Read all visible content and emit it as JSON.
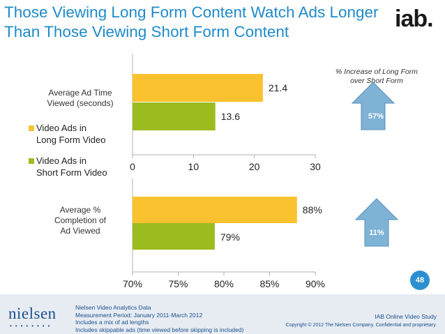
{
  "title": "Those Viewing Long Form Content Watch Ads Longer Than Those Viewing Short Form Content",
  "logo_text": "iab.",
  "page_number": "48",
  "increase_note": "% Increase of Long Form over Short Form",
  "footer": {
    "brand": "nielsen",
    "notes": [
      "Nielsen Video Analytics Data",
      "Measurement Period: January 2011-March 2012",
      "Includes a mix of ad lengths",
      "Includes skippable ads (time viewed before skipping is included)"
    ],
    "study": "IAB Online Video Study",
    "copyright": "Copyright © 2012 The Nielsen Company. Confidential and proprietary."
  },
  "colors": {
    "long_form": "#f9c22e",
    "short_form": "#9bbb1f",
    "arrow_fill": "#7fb3d6",
    "arrow_stroke": "#5a8fb8",
    "title": "#1f8bc8",
    "badge_text": "#ffffff"
  },
  "chart_data": [
    {
      "type": "bar",
      "orientation": "horizontal",
      "category": "Average Ad Time Viewed (seconds)",
      "series": [
        {
          "name": "Video Ads in Long Form Video",
          "value": 21.4,
          "label": "21.4"
        },
        {
          "name": "Video Ads in Short Form Video",
          "value": 13.6,
          "label": "13.6"
        }
      ],
      "xlim": [
        0,
        30
      ],
      "xticks": [
        "0",
        "10",
        "20",
        "30"
      ],
      "increase": "57%",
      "legend_position": "left"
    },
    {
      "type": "bar",
      "orientation": "horizontal",
      "category": "Average % Completion of Ad Viewed",
      "series": [
        {
          "name": "Video Ads in Long Form Video",
          "value": 88,
          "label": "88%"
        },
        {
          "name": "Video Ads in Short Form Video",
          "value": 79,
          "label": "79%"
        }
      ],
      "xlim": [
        70,
        90
      ],
      "xticks": [
        "70%",
        "75%",
        "80%",
        "85%",
        "90%"
      ],
      "increase": "11%"
    }
  ]
}
